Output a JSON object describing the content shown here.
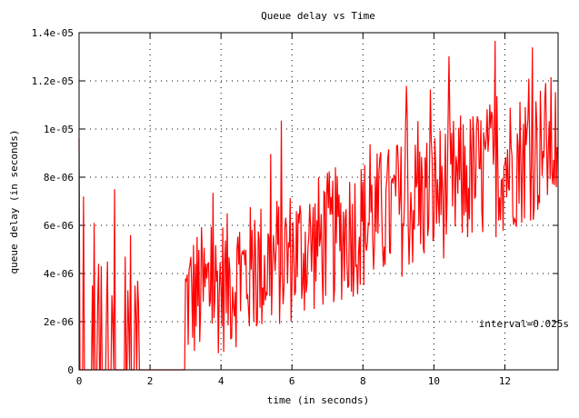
{
  "chart_data": {
    "type": "line",
    "title": "Queue delay vs Time",
    "xlabel": "time (in seconds)",
    "ylabel": "queue delay (in seconds)",
    "xlim": [
      0,
      13.5
    ],
    "ylim": [
      0,
      1.4e-05
    ],
    "x_ticks": [
      0,
      2,
      4,
      6,
      8,
      10,
      12
    ],
    "x_tick_labels": [
      "0",
      "2",
      "4",
      "6",
      "8",
      "10",
      "12"
    ],
    "y_ticks": [
      0,
      2e-06,
      4e-06,
      6e-06,
      8e-06,
      1e-05,
      1.2e-05,
      1.4e-05
    ],
    "y_tick_labels": [
      "0",
      "2e-06",
      "4e-06",
      "6e-06",
      "8e-06",
      "1e-05",
      "1.2e-05",
      "1.4e-05"
    ],
    "grid": true,
    "annotation": "interval=0.025s",
    "series": [
      {
        "color": "#ff0000",
        "interval": 0.025,
        "values_e_minus_6": [
          9.6,
          0,
          0,
          0,
          0,
          7.2,
          0,
          0,
          0,
          0,
          0,
          0,
          0,
          0,
          0,
          3.5,
          0,
          6.1,
          0,
          0,
          0,
          2.8,
          4.4,
          0,
          0,
          4.3,
          0,
          0,
          0,
          0,
          0,
          2.7,
          4.5,
          0,
          0,
          0,
          0,
          3.1,
          2.1,
          0,
          7.5,
          0,
          0,
          0,
          0,
          0,
          0,
          0,
          0,
          0,
          0,
          0,
          4.7,
          0,
          0,
          3.3,
          1.8,
          0,
          5.6,
          0,
          0,
          0,
          0,
          3.5,
          2.4,
          0,
          3.7,
          2.7,
          0,
          0,
          0,
          0,
          0,
          0,
          0,
          0,
          0,
          0,
          0,
          0,
          0,
          0,
          0,
          0,
          0,
          0,
          0,
          0,
          0,
          0,
          0,
          0,
          0,
          0,
          0,
          0,
          0,
          0,
          0,
          0,
          0,
          0,
          0,
          0,
          0,
          0,
          0,
          0,
          0,
          0,
          0,
          0,
          0,
          0,
          0,
          0,
          0,
          0,
          0,
          0
        ]
      }
    ]
  }
}
